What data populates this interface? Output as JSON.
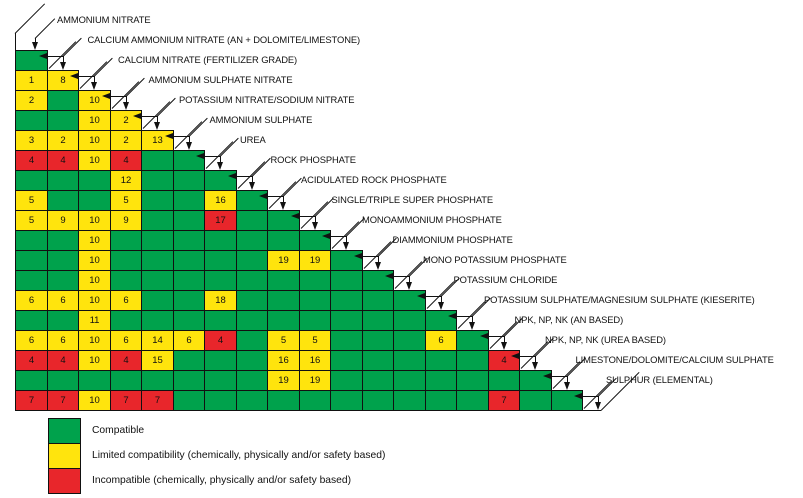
{
  "colors": {
    "G": "#00A24C",
    "Y": "#FFE40D",
    "R": "#E8262B"
  },
  "legend": {
    "items": [
      {
        "code": "G",
        "label": "Compatible"
      },
      {
        "code": "Y",
        "label": "Limited compatibility (chemically, physically and/or safety based)"
      },
      {
        "code": "R",
        "label": "Incompatible (chemically, physically and/or safety based)"
      }
    ]
  },
  "chart_data": {
    "type": "heatmap",
    "title": "Fertilizer blending compatibility matrix (lower triangular)",
    "materials": [
      "AMMONIUM NITRATE",
      "CALCIUM AMMONIUM NITRATE (AN + DOLOMITE/LIMESTONE)",
      "CALCIUM NITRATE (FERTILIZER GRADE)",
      "AMMONIUM SULPHATE NITRATE",
      "POTASSIUM NITRATE/SODIUM NITRATE",
      "AMMONIUM SULPHATE",
      "UREA",
      "ROCK PHOSPHATE",
      "ACIDULATED ROCK PHOSPHATE",
      "SINGLE/TRIPLE SUPER PHOSPHATE",
      "MONOAMMONIUM PHOSPHATE",
      "DIAMMONIUM PHOSPHATE",
      "MONO POTASSIUM PHOSPHATE",
      "POTASSIUM CHLORIDE",
      "POTASSIUM SULPHATE/MAGNESIUM SULPHATE (KIESERITE)",
      "NPK, NP, NK (AN BASED)",
      "NPK, NP, NK (UREA BASED)",
      "LIMESTONE/DOLOMITE/CALCIUM SULPHATE",
      "SULPHUR (ELEMENTAL)"
    ],
    "cell_codes": {
      "G": "Compatible",
      "Y": "Limited compatibility",
      "R": "Incompatible"
    },
    "row_semantics": "rows[i] lists cells for materials[i+1] versus materials[0..i]; numbers in cells are footnote references visible in the chart",
    "rows": [
      [
        "G"
      ],
      [
        "Y:1",
        "Y:8"
      ],
      [
        "Y:2",
        "G",
        "Y:10"
      ],
      [
        "G",
        "G",
        "Y:10",
        "Y:2"
      ],
      [
        "Y:3",
        "Y:2",
        "Y:10",
        "Y:2",
        "Y:13"
      ],
      [
        "R:4",
        "R:4",
        "Y:10",
        "R:4",
        "G",
        "G"
      ],
      [
        "G",
        "G",
        "G",
        "Y:12",
        "G",
        "G",
        "G"
      ],
      [
        "Y:5",
        "G",
        "G",
        "Y:5",
        "G",
        "G",
        "Y:16",
        "G"
      ],
      [
        "Y:5",
        "Y:9",
        "Y:10",
        "Y:9",
        "G",
        "G",
        "R:17",
        "G",
        "G"
      ],
      [
        "G",
        "G",
        "Y:10",
        "G",
        "G",
        "G",
        "G",
        "G",
        "G",
        "G"
      ],
      [
        "G",
        "G",
        "Y:10",
        "G",
        "G",
        "G",
        "G",
        "G",
        "Y:19",
        "Y:19",
        "G"
      ],
      [
        "G",
        "G",
        "Y:10",
        "G",
        "G",
        "G",
        "G",
        "G",
        "G",
        "G",
        "G",
        "G"
      ],
      [
        "Y:6",
        "Y:6",
        "Y:10",
        "Y:6",
        "G",
        "G",
        "Y:18",
        "G",
        "G",
        "G",
        "G",
        "G",
        "G"
      ],
      [
        "G",
        "G",
        "Y:11",
        "G",
        "G",
        "G",
        "G",
        "G",
        "G",
        "G",
        "G",
        "G",
        "G",
        "G"
      ],
      [
        "Y:6",
        "Y:6",
        "Y:10",
        "Y:6",
        "Y:14",
        "Y:6",
        "R:4",
        "G",
        "Y:5",
        "Y:5",
        "G",
        "G",
        "G",
        "Y:6",
        "G"
      ],
      [
        "R:4",
        "R:4",
        "Y:10",
        "R:4",
        "Y:15",
        "G",
        "G",
        "G",
        "Y:16",
        "Y:16",
        "G",
        "G",
        "G",
        "G",
        "G",
        "R:4"
      ],
      [
        "G",
        "G",
        "G",
        "G",
        "G",
        "G",
        "G",
        "G",
        "Y:19",
        "Y:19",
        "G",
        "G",
        "G",
        "G",
        "G",
        "G",
        "G"
      ],
      [
        "R:7",
        "R:7",
        "Y:10",
        "R:7",
        "R:7",
        "G",
        "G",
        "G",
        "G",
        "G",
        "G",
        "G",
        "G",
        "G",
        "G",
        "R:7",
        "G",
        "G"
      ]
    ]
  }
}
